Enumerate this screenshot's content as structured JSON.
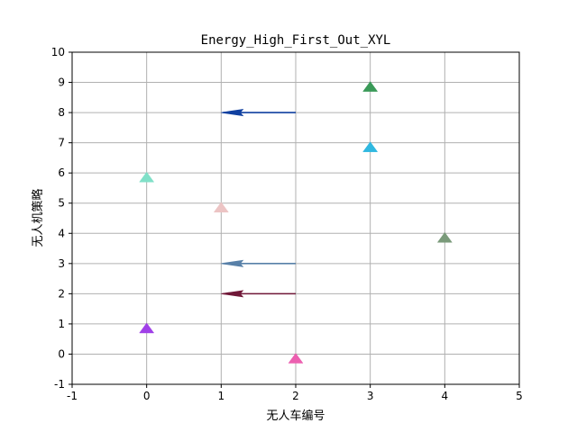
{
  "chart_data": {
    "type": "scatter",
    "title": "Energy_High_First_Out_XYL",
    "xlabel": "无人车编号",
    "ylabel": "无人机策略",
    "xlim": [
      -1,
      5
    ],
    "ylim": [
      -1,
      10
    ],
    "xticks": [
      "-1",
      "0",
      "1",
      "2",
      "3",
      "4",
      "5"
    ],
    "yticks": [
      "-1",
      "0",
      "1",
      "2",
      "3",
      "4",
      "5",
      "6",
      "7",
      "8",
      "9",
      "10"
    ],
    "grid": true,
    "markers": [
      {
        "x": 0,
        "y": 0.85,
        "color": "#a040e8"
      },
      {
        "x": 0,
        "y": 5.85,
        "color": "#80e0c8"
      },
      {
        "x": 1,
        "y": 4.85,
        "color": "#ecc4c4"
      },
      {
        "x": 2,
        "y": -0.15,
        "color": "#ec60b0"
      },
      {
        "x": 3,
        "y": 8.85,
        "color": "#3a9a58"
      },
      {
        "x": 3,
        "y": 6.85,
        "color": "#30b8e0"
      },
      {
        "x": 4,
        "y": 3.85,
        "color": "#7a9a7a"
      }
    ],
    "arrows": [
      {
        "x_from": 2,
        "x_to": 1,
        "y": 8,
        "color": "#1040a0"
      },
      {
        "x_from": 2,
        "x_to": 1,
        "y": 3,
        "color": "#5880a8"
      },
      {
        "x_from": 2,
        "x_to": 1,
        "y": 2,
        "color": "#701838"
      }
    ]
  }
}
